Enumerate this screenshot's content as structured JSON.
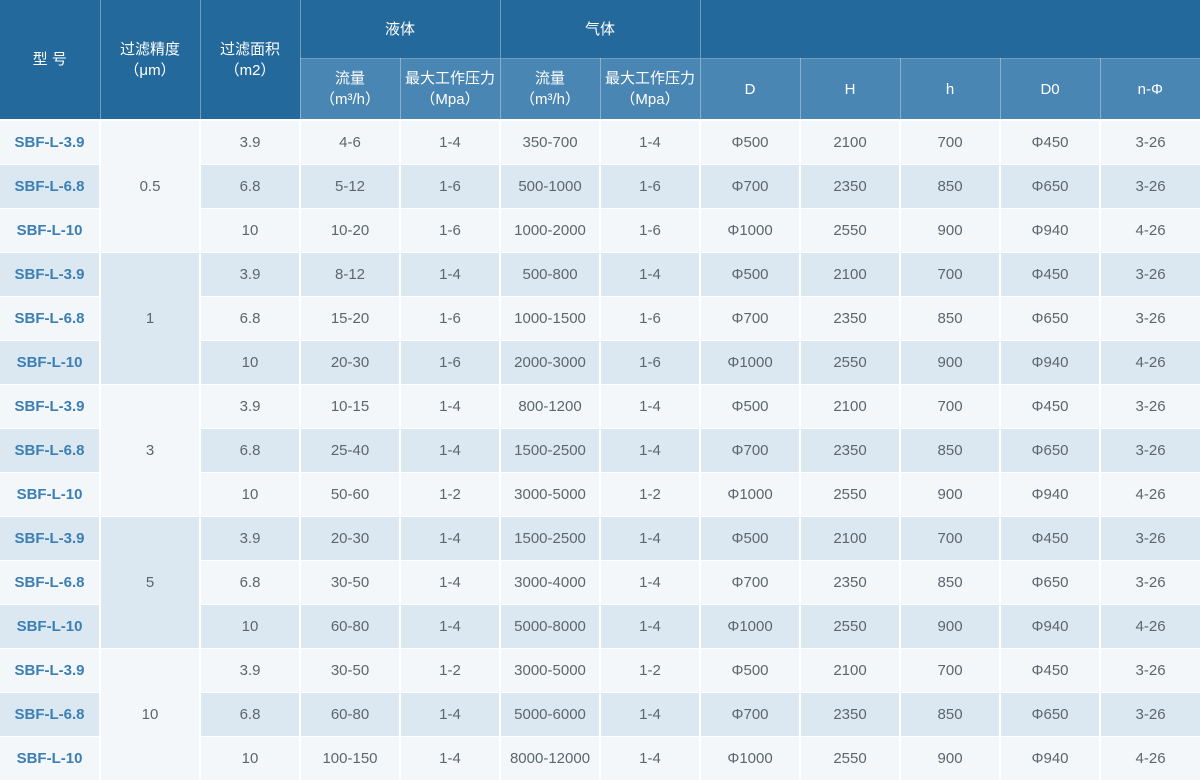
{
  "colors": {
    "header-dark": "#24699c",
    "header-light": "#4a86b3",
    "row-light": "#f3f7fa",
    "row-tint": "#dce8f1",
    "cell-text": "#5d666d",
    "model-text": "#3b7fb4"
  },
  "table": {
    "header": {
      "model": "型 号",
      "precision_l1": "过滤精度",
      "precision_l2": "（μm）",
      "area_l1": "过滤面积",
      "area_l2": "（m2）",
      "liquid_group": "液体",
      "gas_group": "气体",
      "flow_l1": "流量",
      "flow_l2": "（m³/h）",
      "pressure_l1": "最大工作压力",
      "pressure_l2": "（Mpa）",
      "d": "D",
      "H": "H",
      "h": "h",
      "d0": "D0",
      "nphi": "n-Φ"
    },
    "groups": [
      {
        "precision": "0.5",
        "rows": [
          {
            "model": "SBF-L-3.9",
            "area": "3.9",
            "liquid_flow": "4-6",
            "liquid_pressure": "1-4",
            "gas_flow": "350-700",
            "gas_pressure": "1-4",
            "d": "Φ500",
            "H": "2100",
            "h": "700",
            "d0": "Φ450",
            "nphi": "3-26"
          },
          {
            "model": "SBF-L-6.8",
            "area": "6.8",
            "liquid_flow": "5-12",
            "liquid_pressure": "1-6",
            "gas_flow": "500-1000",
            "gas_pressure": "1-6",
            "d": "Φ700",
            "H": "2350",
            "h": "850",
            "d0": "Φ650",
            "nphi": "3-26"
          },
          {
            "model": "SBF-L-10",
            "area": "10",
            "liquid_flow": "10-20",
            "liquid_pressure": "1-6",
            "gas_flow": "1000-2000",
            "gas_pressure": "1-6",
            "d": "Φ1000",
            "H": "2550",
            "h": "900",
            "d0": "Φ940",
            "nphi": "4-26"
          }
        ]
      },
      {
        "precision": "1",
        "rows": [
          {
            "model": "SBF-L-3.9",
            "area": "3.9",
            "liquid_flow": "8-12",
            "liquid_pressure": "1-4",
            "gas_flow": "500-800",
            "gas_pressure": "1-4",
            "d": "Φ500",
            "H": "2100",
            "h": "700",
            "d0": "Φ450",
            "nphi": "3-26"
          },
          {
            "model": "SBF-L-6.8",
            "area": "6.8",
            "liquid_flow": "15-20",
            "liquid_pressure": "1-6",
            "gas_flow": "1000-1500",
            "gas_pressure": "1-6",
            "d": "Φ700",
            "H": "2350",
            "h": "850",
            "d0": "Φ650",
            "nphi": "3-26"
          },
          {
            "model": "SBF-L-10",
            "area": "10",
            "liquid_flow": "20-30",
            "liquid_pressure": "1-6",
            "gas_flow": "2000-3000",
            "gas_pressure": "1-6",
            "d": "Φ1000",
            "H": "2550",
            "h": "900",
            "d0": "Φ940",
            "nphi": "4-26"
          }
        ]
      },
      {
        "precision": "3",
        "rows": [
          {
            "model": "SBF-L-3.9",
            "area": "3.9",
            "liquid_flow": "10-15",
            "liquid_pressure": "1-4",
            "gas_flow": "800-1200",
            "gas_pressure": "1-4",
            "d": "Φ500",
            "H": "2100",
            "h": "700",
            "d0": "Φ450",
            "nphi": "3-26"
          },
          {
            "model": "SBF-L-6.8",
            "area": "6.8",
            "liquid_flow": "25-40",
            "liquid_pressure": "1-4",
            "gas_flow": "1500-2500",
            "gas_pressure": "1-4",
            "d": "Φ700",
            "H": "2350",
            "h": "850",
            "d0": "Φ650",
            "nphi": "3-26"
          },
          {
            "model": "SBF-L-10",
            "area": "10",
            "liquid_flow": "50-60",
            "liquid_pressure": "1-2",
            "gas_flow": "3000-5000",
            "gas_pressure": "1-2",
            "d": "Φ1000",
            "H": "2550",
            "h": "900",
            "d0": "Φ940",
            "nphi": "4-26"
          }
        ]
      },
      {
        "precision": "5",
        "rows": [
          {
            "model": "SBF-L-3.9",
            "area": "3.9",
            "liquid_flow": "20-30",
            "liquid_pressure": "1-4",
            "gas_flow": "1500-2500",
            "gas_pressure": "1-4",
            "d": "Φ500",
            "H": "2100",
            "h": "700",
            "d0": "Φ450",
            "nphi": "3-26"
          },
          {
            "model": "SBF-L-6.8",
            "area": "6.8",
            "liquid_flow": "30-50",
            "liquid_pressure": "1-4",
            "gas_flow": "3000-4000",
            "gas_pressure": "1-4",
            "d": "Φ700",
            "H": "2350",
            "h": "850",
            "d0": "Φ650",
            "nphi": "3-26"
          },
          {
            "model": "SBF-L-10",
            "area": "10",
            "liquid_flow": "60-80",
            "liquid_pressure": "1-4",
            "gas_flow": "5000-8000",
            "gas_pressure": "1-4",
            "d": "Φ1000",
            "H": "2550",
            "h": "900",
            "d0": "Φ940",
            "nphi": "4-26"
          }
        ]
      },
      {
        "precision": "10",
        "rows": [
          {
            "model": "SBF-L-3.9",
            "area": "3.9",
            "liquid_flow": "30-50",
            "liquid_pressure": "1-2",
            "gas_flow": "3000-5000",
            "gas_pressure": "1-2",
            "d": "Φ500",
            "H": "2100",
            "h": "700",
            "d0": "Φ450",
            "nphi": "3-26"
          },
          {
            "model": "SBF-L-6.8",
            "area": "6.8",
            "liquid_flow": "60-80",
            "liquid_pressure": "1-4",
            "gas_flow": "5000-6000",
            "gas_pressure": "1-4",
            "d": "Φ700",
            "H": "2350",
            "h": "850",
            "d0": "Φ650",
            "nphi": "3-26"
          },
          {
            "model": "SBF-L-10",
            "area": "10",
            "liquid_flow": "100-150",
            "liquid_pressure": "1-4",
            "gas_flow": "8000-12000",
            "gas_pressure": "1-4",
            "d": "Φ1000",
            "H": "2550",
            "h": "900",
            "d0": "Φ940",
            "nphi": "4-26"
          }
        ]
      }
    ]
  }
}
